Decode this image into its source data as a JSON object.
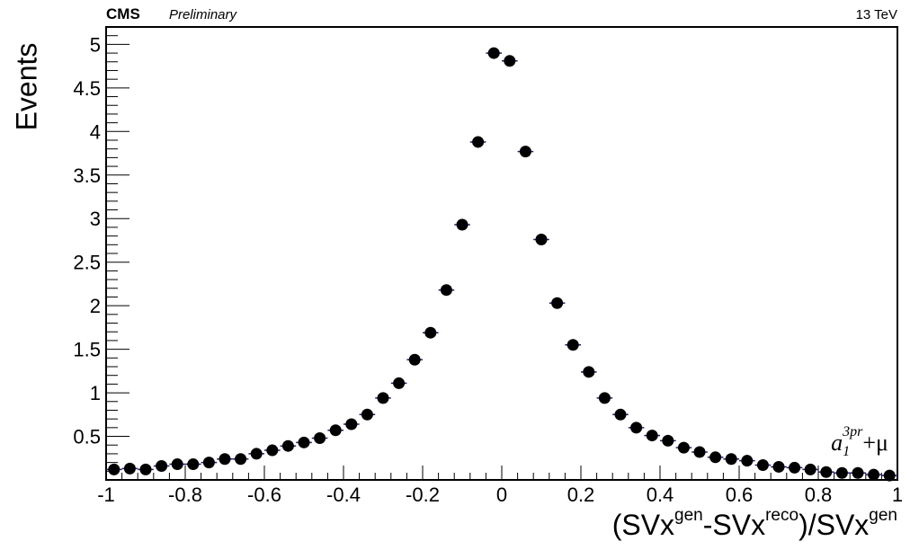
{
  "header": {
    "experiment": "CMS",
    "status": "Preliminary",
    "energy": "13 TeV"
  },
  "label": {
    "process_base": "a",
    "process_sub": "1",
    "process_sup": "3pr",
    "process_rest": "+μ"
  },
  "chart_data": {
    "type": "scatter",
    "title": "",
    "xlabel_parts": [
      "(SVx",
      "gen",
      "-SVx",
      "reco",
      ")/SVx",
      "gen"
    ],
    "ylabel": "Events",
    "xlim": [
      -1,
      1
    ],
    "ylim": [
      0,
      5.2
    ],
    "x_ticks": [
      -1,
      -0.8,
      -0.6,
      -0.4,
      -0.2,
      0,
      0.2,
      0.4,
      0.6,
      0.8,
      1
    ],
    "x_tick_labels": [
      "-1",
      "-0.8",
      "-0.6",
      "-0.4",
      "-0.2",
      "0",
      "0.2",
      "0.4",
      "0.6",
      "0.8",
      "1"
    ],
    "y_ticks": [
      0.5,
      1,
      1.5,
      2,
      2.5,
      3,
      3.5,
      4,
      4.5,
      5
    ],
    "y_tick_labels": [
      "0.5",
      "1",
      "1.5",
      "2",
      "2.5",
      "3",
      "3.5",
      "4",
      "4.5",
      "5"
    ],
    "grid": false,
    "marker_color": "#000000",
    "error_bar_color": "#2a1a6e",
    "series": [
      {
        "x": [
          -0.98,
          -0.94,
          -0.9,
          -0.86,
          -0.82,
          -0.78,
          -0.74,
          -0.7,
          -0.66,
          -0.62,
          -0.58,
          -0.54,
          -0.5,
          -0.46,
          -0.42,
          -0.38,
          -0.34,
          -0.3,
          -0.26,
          -0.22,
          -0.18,
          -0.14,
          -0.1,
          -0.06,
          -0.02,
          0.02,
          0.06,
          0.1,
          0.14,
          0.18,
          0.22,
          0.26,
          0.3,
          0.34,
          0.38,
          0.42,
          0.46,
          0.5,
          0.54,
          0.58,
          0.62,
          0.66,
          0.7,
          0.74,
          0.78,
          0.82,
          0.86,
          0.9,
          0.94,
          0.98
        ],
        "y": [
          0.12,
          0.13,
          0.12,
          0.16,
          0.18,
          0.18,
          0.2,
          0.24,
          0.24,
          0.3,
          0.34,
          0.39,
          0.43,
          0.48,
          0.57,
          0.64,
          0.75,
          0.94,
          1.11,
          1.38,
          1.69,
          2.18,
          2.93,
          3.88,
          4.9,
          4.81,
          3.77,
          2.76,
          2.03,
          1.55,
          1.24,
          0.94,
          0.75,
          0.6,
          0.51,
          0.45,
          0.37,
          0.32,
          0.26,
          0.24,
          0.22,
          0.17,
          0.15,
          0.14,
          0.12,
          0.09,
          0.08,
          0.08,
          0.06,
          0.05
        ]
      }
    ]
  }
}
